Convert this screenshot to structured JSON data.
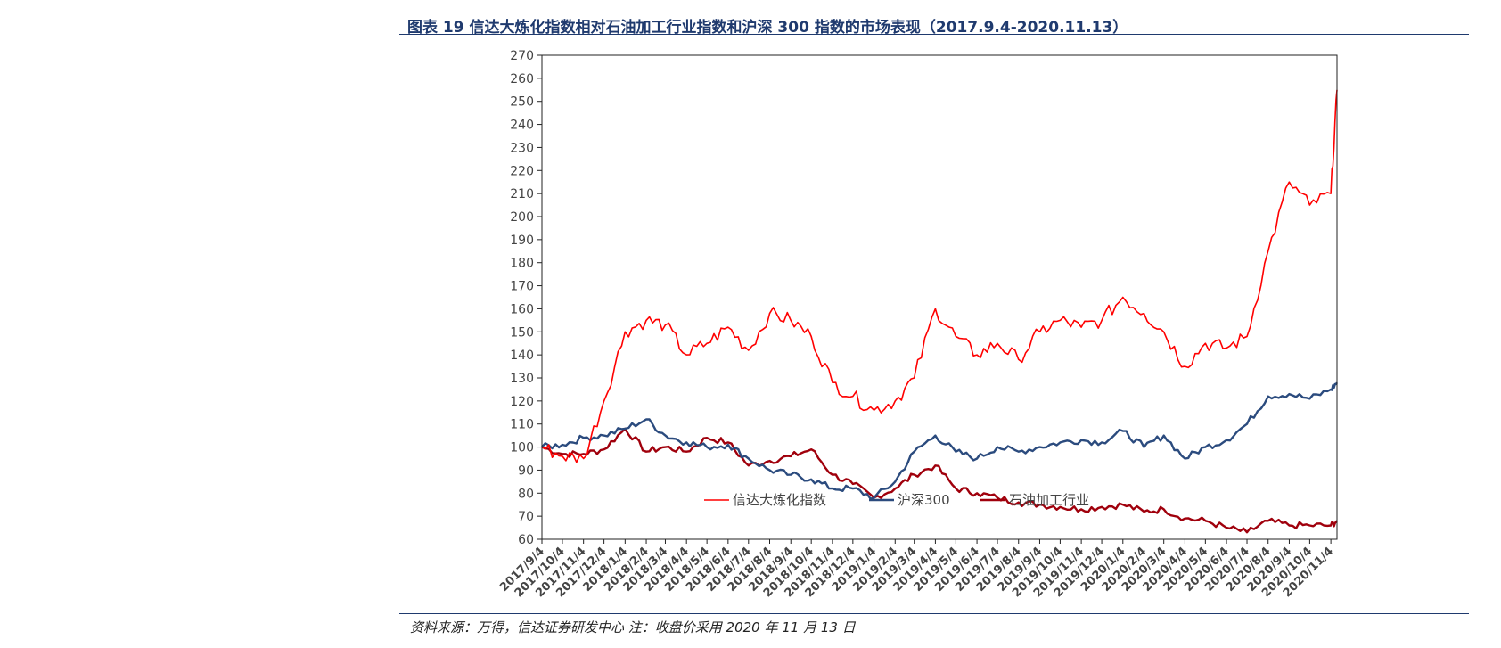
{
  "header": {
    "title": "图表 19 信达大炼化指数相对石油加工行业指数和沪深 300 指数的市场表现（2017.9.4-2020.11.13）"
  },
  "footer": {
    "source": "资料来源：万得，信达证券研发中心   注：收盘价采用 2020 年 11 月 13 日"
  },
  "chart_data": {
    "type": "line",
    "title": "",
    "xlabel": "",
    "ylabel": "",
    "ylim": [
      60,
      270
    ],
    "y_ticks": [
      60,
      70,
      80,
      90,
      100,
      110,
      120,
      130,
      140,
      150,
      160,
      170,
      180,
      190,
      200,
      210,
      220,
      230,
      240,
      250,
      260,
      270
    ],
    "x_ticks": [
      "2017/9/4",
      "2017/10/4",
      "2017/11/4",
      "2017/12/4",
      "2018/1/4",
      "2018/2/4",
      "2018/3/4",
      "2018/4/4",
      "2018/5/4",
      "2018/6/4",
      "2018/7/4",
      "2018/8/4",
      "2018/9/4",
      "2018/10/4",
      "2018/11/4",
      "2018/12/4",
      "2019/1/4",
      "2019/2/4",
      "2019/3/4",
      "2019/4/4",
      "2019/5/4",
      "2019/6/4",
      "2019/7/4",
      "2019/8/4",
      "2019/9/4",
      "2019/10/4",
      "2019/11/4",
      "2019/12/4",
      "2020/1/4",
      "2020/2/4",
      "2020/3/4",
      "2020/4/4",
      "2020/5/4",
      "2020/6/4",
      "2020/7/4",
      "2020/8/4",
      "2020/9/4",
      "2020/10/4",
      "2020/11/4"
    ],
    "x_range": [
      "2017/9/4",
      "2020/11/13"
    ],
    "grid": false,
    "legend_position": "bottom-center inside plot",
    "x": [
      "2017/9/4",
      "2017/10/4",
      "2017/11/4",
      "2017/12/4",
      "2018/1/4",
      "2018/2/4",
      "2018/3/4",
      "2018/4/4",
      "2018/5/4",
      "2018/6/4",
      "2018/7/4",
      "2018/8/4",
      "2018/9/4",
      "2018/10/4",
      "2018/11/4",
      "2018/12/4",
      "2019/1/4",
      "2019/2/4",
      "2019/3/4",
      "2019/4/4",
      "2019/5/4",
      "2019/6/4",
      "2019/7/4",
      "2019/8/4",
      "2019/9/4",
      "2019/10/4",
      "2019/11/4",
      "2019/12/4",
      "2020/1/4",
      "2020/2/4",
      "2020/3/4",
      "2020/4/4",
      "2020/5/4",
      "2020/6/4",
      "2020/7/4",
      "2020/8/4",
      "2020/9/4",
      "2020/10/4",
      "2020/11/4",
      "2020/11/13"
    ],
    "series": [
      {
        "name": "信达大炼化指数",
        "color": "#ff0000",
        "values": [
          100,
          96,
          95,
          120,
          150,
          155,
          153,
          140,
          145,
          152,
          142,
          158,
          155,
          148,
          128,
          122,
          116,
          120,
          130,
          160,
          148,
          140,
          145,
          138,
          150,
          155,
          152,
          155,
          165,
          158,
          150,
          135,
          145,
          143,
          148,
          185,
          215,
          205,
          210,
          255
        ]
      },
      {
        "name": "沪深300",
        "color": "#2b4b7e",
        "values": [
          100,
          101,
          104,
          105,
          108,
          112,
          105,
          102,
          100,
          101,
          95,
          90,
          88,
          86,
          82,
          82,
          78,
          85,
          98,
          105,
          98,
          95,
          100,
          98,
          100,
          102,
          103,
          102,
          107,
          100,
          105,
          95,
          100,
          103,
          110,
          122,
          123,
          121,
          125,
          128
        ]
      },
      {
        "name": "石油加工行业",
        "color": "#a0000c",
        "values": [
          100,
          97,
          97,
          99,
          108,
          98,
          100,
          98,
          104,
          102,
          92,
          94,
          96,
          99,
          88,
          84,
          78,
          82,
          88,
          92,
          82,
          80,
          78,
          76,
          75,
          74,
          73,
          74,
          75,
          72,
          73,
          69,
          68,
          65,
          63,
          68,
          66,
          66,
          66,
          68
        ]
      }
    ]
  }
}
